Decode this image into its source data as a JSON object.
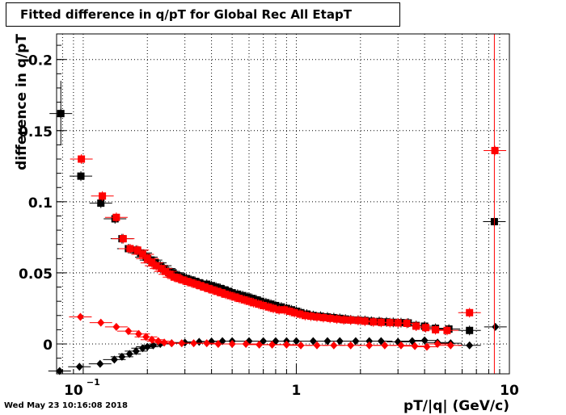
{
  "title": "Fitted difference in q/pT for Global Rec All EtapT",
  "timestamp": "Wed May 23 10:16:08 2018",
  "chart_data": {
    "type": "scatter",
    "xlabel": "pT/|q| (GeV/c)",
    "ylabel": "difference in q/pT",
    "xscale": "log",
    "xlim": [
      0.075,
      10
    ],
    "ylim": [
      -0.021,
      0.218
    ],
    "grid": true,
    "x_ticks": [
      {
        "value": 0.1,
        "label": "10",
        "sup": "−1"
      },
      {
        "value": 1,
        "label": "1"
      },
      {
        "value": 10,
        "label": "10"
      }
    ],
    "y_ticks": [
      {
        "value": 0,
        "label": "0"
      },
      {
        "value": 0.05,
        "label": "0.05"
      },
      {
        "value": 0.1,
        "label": "0.1"
      },
      {
        "value": 0.15,
        "label": "0.15"
      },
      {
        "value": 0.2,
        "label": "0.2"
      }
    ],
    "colors": {
      "black": "#000000",
      "red": "#ff0000"
    },
    "series": [
      {
        "marker": "square",
        "color": "#000000",
        "points": [
          [
            0.0785,
            0.162
          ],
          [
            0.0975,
            0.118
          ],
          [
            0.121,
            0.099
          ],
          [
            0.141,
            0.088
          ],
          [
            0.152,
            0.074
          ],
          [
            0.163,
            0.067
          ],
          [
            0.177,
            0.066
          ],
          [
            0.186,
            0.064
          ],
          [
            0.198,
            0.061
          ],
          [
            0.208,
            0.059
          ],
          [
            0.218,
            0.057
          ],
          [
            0.23,
            0.055
          ],
          [
            0.24,
            0.053
          ],
          [
            0.252,
            0.051
          ],
          [
            0.264,
            0.05
          ],
          [
            0.276,
            0.048
          ],
          [
            0.29,
            0.047
          ],
          [
            0.305,
            0.046
          ],
          [
            0.32,
            0.045
          ],
          [
            0.335,
            0.044
          ],
          [
            0.35,
            0.043
          ],
          [
            0.365,
            0.042
          ],
          [
            0.38,
            0.042
          ],
          [
            0.4,
            0.041
          ],
          [
            0.42,
            0.04
          ],
          [
            0.44,
            0.039
          ],
          [
            0.46,
            0.038
          ],
          [
            0.48,
            0.037
          ],
          [
            0.5,
            0.036
          ],
          [
            0.53,
            0.035
          ],
          [
            0.56,
            0.034
          ],
          [
            0.59,
            0.033
          ],
          [
            0.62,
            0.032
          ],
          [
            0.65,
            0.031
          ],
          [
            0.68,
            0.03
          ],
          [
            0.72,
            0.029
          ],
          [
            0.76,
            0.028
          ],
          [
            0.8,
            0.027
          ],
          [
            0.85,
            0.026
          ],
          [
            0.9,
            0.025
          ],
          [
            0.95,
            0.024
          ],
          [
            1.0,
            0.023
          ],
          [
            1.05,
            0.022
          ],
          [
            1.12,
            0.021
          ],
          [
            1.2,
            0.02
          ],
          [
            1.3,
            0.0195
          ],
          [
            1.4,
            0.019
          ],
          [
            1.5,
            0.0185
          ],
          [
            1.6,
            0.018
          ],
          [
            1.7,
            0.0175
          ],
          [
            1.8,
            0.017
          ],
          [
            1.95,
            0.0168
          ],
          [
            2.1,
            0.0165
          ],
          [
            2.25,
            0.016
          ],
          [
            2.45,
            0.0158
          ],
          [
            2.65,
            0.0155
          ],
          [
            2.85,
            0.0152
          ],
          [
            3.1,
            0.015
          ],
          [
            3.35,
            0.0148
          ],
          [
            3.65,
            0.013
          ],
          [
            4.0,
            0.0125
          ],
          [
            4.5,
            0.011
          ],
          [
            5.2,
            0.0105
          ],
          [
            6.5,
            0.0095
          ],
          [
            8.5,
            0.086
          ]
        ]
      },
      {
        "marker": "square",
        "color": "#ff0000",
        "points": [
          [
            0.098,
            0.13
          ],
          [
            0.123,
            0.104
          ],
          [
            0.143,
            0.089
          ],
          [
            0.154,
            0.074
          ],
          [
            0.166,
            0.067
          ],
          [
            0.18,
            0.066
          ],
          [
            0.19,
            0.063
          ],
          [
            0.2,
            0.06
          ],
          [
            0.21,
            0.057
          ],
          [
            0.22,
            0.055
          ],
          [
            0.232,
            0.053
          ],
          [
            0.243,
            0.051
          ],
          [
            0.255,
            0.049
          ],
          [
            0.267,
            0.047
          ],
          [
            0.28,
            0.046
          ],
          [
            0.293,
            0.045
          ],
          [
            0.307,
            0.044
          ],
          [
            0.322,
            0.043
          ],
          [
            0.338,
            0.042
          ],
          [
            0.354,
            0.041
          ],
          [
            0.37,
            0.04
          ],
          [
            0.387,
            0.039
          ],
          [
            0.405,
            0.038
          ],
          [
            0.425,
            0.037
          ],
          [
            0.445,
            0.036
          ],
          [
            0.465,
            0.035
          ],
          [
            0.49,
            0.034
          ],
          [
            0.515,
            0.033
          ],
          [
            0.54,
            0.032
          ],
          [
            0.57,
            0.031
          ],
          [
            0.6,
            0.03
          ],
          [
            0.63,
            0.029
          ],
          [
            0.665,
            0.028
          ],
          [
            0.7,
            0.027
          ],
          [
            0.74,
            0.026
          ],
          [
            0.78,
            0.025
          ],
          [
            0.83,
            0.024
          ],
          [
            0.88,
            0.024
          ],
          [
            0.93,
            0.023
          ],
          [
            0.98,
            0.022
          ],
          [
            1.04,
            0.021
          ],
          [
            1.1,
            0.02
          ],
          [
            1.17,
            0.0195
          ],
          [
            1.25,
            0.019
          ],
          [
            1.34,
            0.0185
          ],
          [
            1.44,
            0.018
          ],
          [
            1.55,
            0.0175
          ],
          [
            1.67,
            0.017
          ],
          [
            1.8,
            0.0168
          ],
          [
            1.95,
            0.0165
          ],
          [
            2.1,
            0.016
          ],
          [
            2.3,
            0.0155
          ],
          [
            2.5,
            0.0152
          ],
          [
            2.75,
            0.015
          ],
          [
            3.0,
            0.0148
          ],
          [
            3.3,
            0.0145
          ],
          [
            3.65,
            0.0125
          ],
          [
            4.05,
            0.0115
          ],
          [
            4.5,
            0.01
          ],
          [
            5.1,
            0.0095
          ],
          [
            6.5,
            0.022
          ],
          [
            8.55,
            0.136
          ]
        ]
      },
      {
        "marker": "diamond",
        "color": "#000000",
        "points": [
          [
            0.0775,
            -0.019
          ],
          [
            0.096,
            -0.016
          ],
          [
            0.12,
            -0.014
          ],
          [
            0.14,
            -0.011
          ],
          [
            0.152,
            -0.009
          ],
          [
            0.165,
            -0.007
          ],
          [
            0.177,
            -0.005
          ],
          [
            0.19,
            -0.003
          ],
          [
            0.2,
            -0.002
          ],
          [
            0.213,
            -0.001
          ],
          [
            0.23,
            0.0
          ],
          [
            0.26,
            0.0005
          ],
          [
            0.3,
            0.001
          ],
          [
            0.35,
            0.0015
          ],
          [
            0.4,
            0.0018
          ],
          [
            0.45,
            0.002
          ],
          [
            0.5,
            0.002
          ],
          [
            0.6,
            0.002
          ],
          [
            0.7,
            0.002
          ],
          [
            0.8,
            0.002
          ],
          [
            0.9,
            0.002
          ],
          [
            1.0,
            0.002
          ],
          [
            1.2,
            0.002
          ],
          [
            1.4,
            0.002
          ],
          [
            1.6,
            0.002
          ],
          [
            1.9,
            0.002
          ],
          [
            2.2,
            0.002
          ],
          [
            2.5,
            0.002
          ],
          [
            3.0,
            0.0015
          ],
          [
            3.5,
            0.002
          ],
          [
            4.0,
            0.0025
          ],
          [
            4.6,
            0.001
          ],
          [
            5.3,
            0.0005
          ],
          [
            6.5,
            -0.001
          ],
          [
            8.6,
            0.012
          ]
        ]
      },
      {
        "marker": "diamond",
        "color": "#ff0000",
        "points": [
          [
            0.097,
            0.019
          ],
          [
            0.121,
            0.015
          ],
          [
            0.143,
            0.012
          ],
          [
            0.163,
            0.009
          ],
          [
            0.182,
            0.007
          ],
          [
            0.197,
            0.005
          ],
          [
            0.21,
            0.003
          ],
          [
            0.225,
            0.002
          ],
          [
            0.24,
            0.001
          ],
          [
            0.26,
            0.0005
          ],
          [
            0.29,
            0.0005
          ],
          [
            0.33,
            0.0005
          ],
          [
            0.38,
            0.0005
          ],
          [
            0.43,
            0.0
          ],
          [
            0.5,
            0.0
          ],
          [
            0.58,
            0.0
          ],
          [
            0.67,
            -0.0005
          ],
          [
            0.77,
            -0.0005
          ],
          [
            0.9,
            -0.0005
          ],
          [
            1.05,
            -0.001
          ],
          [
            1.25,
            -0.001
          ],
          [
            1.5,
            -0.001
          ],
          [
            1.8,
            -0.001
          ],
          [
            2.2,
            -0.001
          ],
          [
            2.6,
            -0.001
          ],
          [
            3.1,
            -0.001
          ],
          [
            3.6,
            -0.0015
          ],
          [
            4.1,
            -0.002
          ],
          [
            4.6,
            0.0
          ],
          [
            5.3,
            -0.001
          ]
        ]
      }
    ]
  }
}
